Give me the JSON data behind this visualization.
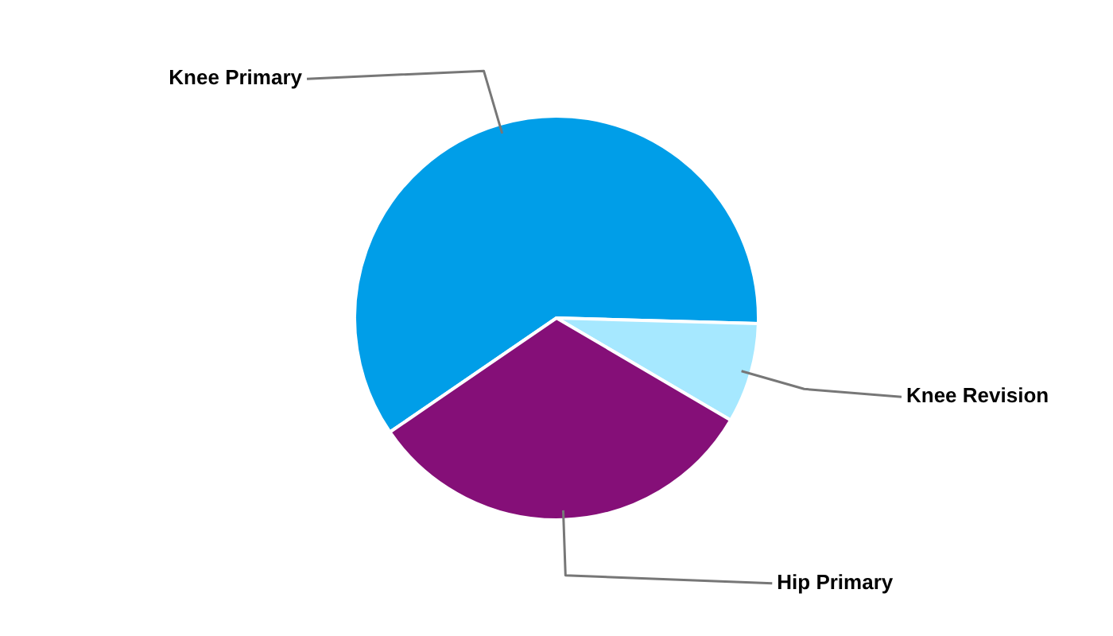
{
  "chart_data": {
    "type": "pie",
    "categories": [
      "Knee Primary",
      "Knee Revision",
      "Hip Primary"
    ],
    "values": [
      60,
      8,
      32
    ],
    "colors": [
      "#009ee8",
      "#a6e8ff",
      "#850f78"
    ],
    "legend": false
  }
}
